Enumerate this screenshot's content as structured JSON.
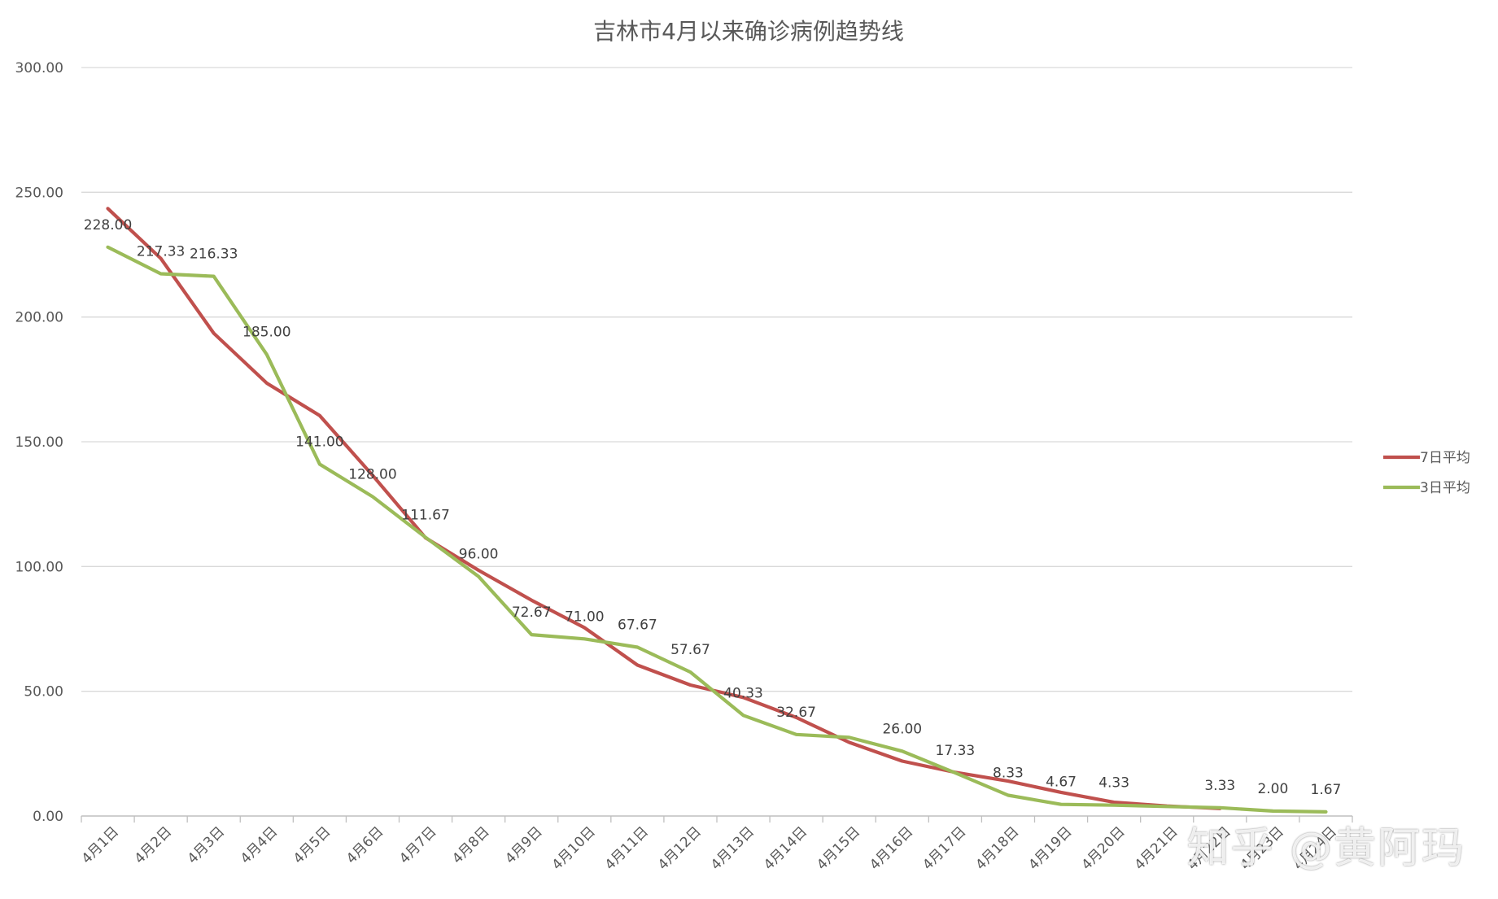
{
  "chart_data": {
    "type": "line",
    "title": "吉林市4月以来确诊病例趋势线",
    "xlabel": "",
    "ylabel": "",
    "ylim": [
      0,
      300
    ],
    "y_ticks": [
      "0.00",
      "50.00",
      "100.00",
      "150.00",
      "200.00",
      "250.00",
      "300.00"
    ],
    "grid": true,
    "legend_position": "right",
    "categories": [
      "4月1日",
      "4月2日",
      "4月3日",
      "4月4日",
      "4月5日",
      "4月6日",
      "4月7日",
      "4月8日",
      "4月9日",
      "4月10日",
      "4月11日",
      "4月12日",
      "4月13日",
      "4月14日",
      "4月15日",
      "4月16日",
      "4月17日",
      "4月18日",
      "4月19日",
      "4月20日",
      "4月21日",
      "4月22日",
      "4月23日",
      "4月24日"
    ],
    "series": [
      {
        "name": "7日平均",
        "color": "#c0504d",
        "values": [
          243.5,
          223.5,
          193.5,
          173.5,
          160.5,
          136.5,
          111.5,
          98.5,
          86.5,
          75.5,
          60.5,
          52.5,
          47.5,
          39.5,
          29.5,
          22,
          17.5,
          14,
          9.5,
          5.5,
          4,
          3,
          null,
          null
        ],
        "labels": []
      },
      {
        "name": "3日平均",
        "color": "#9bbb59",
        "values": [
          228.0,
          217.33,
          216.33,
          185.0,
          141.0,
          128.0,
          111.67,
          96.0,
          72.67,
          71.0,
          67.67,
          57.67,
          40.33,
          32.67,
          31.5,
          26.0,
          17.33,
          8.33,
          4.67,
          4.33,
          3.8,
          3.33,
          2.0,
          1.67
        ],
        "labels": [
          "228.00",
          "217.33",
          "216.33",
          "185.00",
          "141.00",
          "128.00",
          "111.67",
          "96.00",
          "72.67",
          "71.00",
          "67.67",
          "57.67",
          "40.33",
          "32.67",
          "",
          "26.00",
          "17.33",
          "8.33",
          "4.67",
          "4.33",
          "",
          "3.33",
          "2.00",
          "1.67"
        ]
      }
    ]
  },
  "watermark": "知乎 @黄阿玛"
}
